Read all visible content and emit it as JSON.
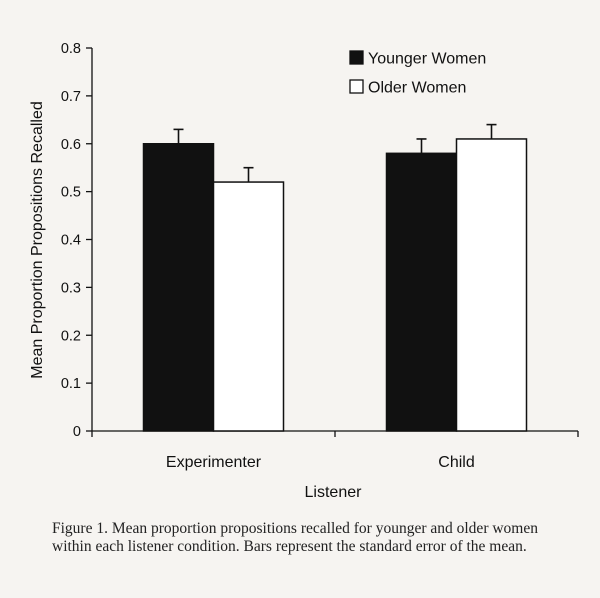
{
  "chart_data": {
    "type": "bar",
    "categories": [
      "Experimenter",
      "Child"
    ],
    "series": [
      {
        "name": "Younger Women",
        "values": [
          0.6,
          0.58
        ],
        "errors": [
          0.03,
          0.03
        ],
        "color": "#111111"
      },
      {
        "name": "Older Women",
        "values": [
          0.52,
          0.61
        ],
        "errors": [
          0.03,
          0.03
        ],
        "color": "#ffffff"
      }
    ],
    "xlabel": "Listener",
    "ylabel": "Mean Proportion Propositions Recalled",
    "ylim": [
      0,
      0.8
    ],
    "yticks": [
      "0",
      "0.1",
      "0.2",
      "0.3",
      "0.4",
      "0.5",
      "0.6",
      "0.7",
      "0.8"
    ],
    "legend_position": "top-right",
    "grid": false
  },
  "caption": "Figure 1. Mean proportion propositions recalled for younger and older women within each listener condition. Bars represent the standard error of the mean."
}
